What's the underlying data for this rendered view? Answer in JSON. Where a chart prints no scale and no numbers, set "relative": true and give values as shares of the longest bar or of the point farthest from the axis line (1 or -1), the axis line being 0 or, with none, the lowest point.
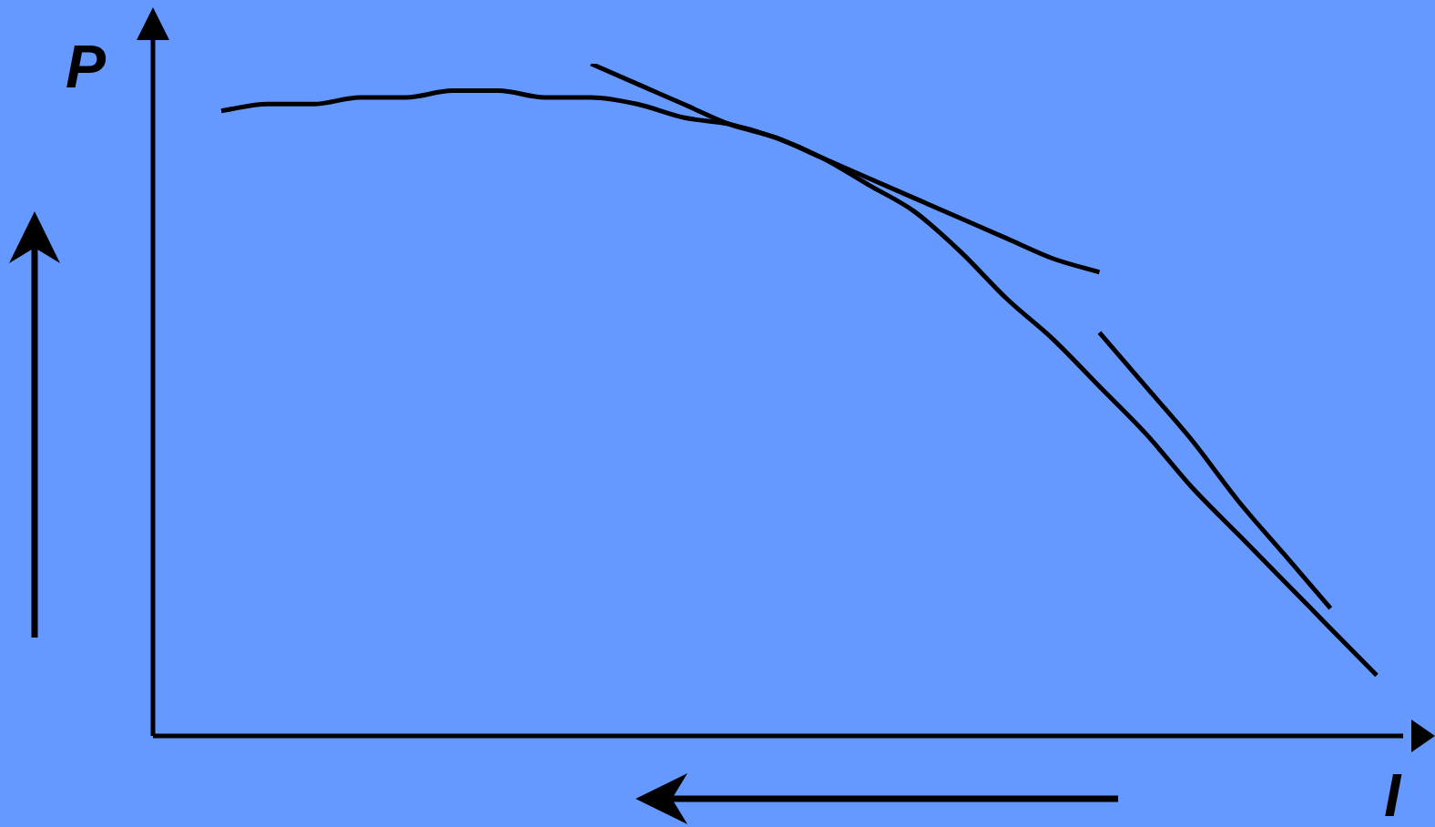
{
  "chart_data": {
    "type": "line",
    "relative": true,
    "xlabel": "I",
    "ylabel": "P",
    "categories": [
      null,
      null,
      null,
      null,
      null,
      null,
      null,
      null,
      null,
      null,
      null,
      null,
      null,
      null,
      null,
      null,
      null,
      null,
      null,
      null,
      null,
      null,
      null,
      null,
      null,
      null
    ],
    "series": [
      {
        "color": "#000000",
        "values": [
          0.93,
          0.94,
          0.94,
          0.95,
          0.95,
          0.96,
          0.96,
          0.95,
          0.95,
          0.94,
          0.92,
          0.91,
          0.89,
          0.86,
          0.82,
          0.78,
          0.72,
          0.65,
          0.59,
          0.52,
          0.45,
          0.37,
          0.3,
          0.23,
          0.16,
          0.09
        ]
      },
      {
        "color": "#000000",
        "values": [
          null,
          null,
          null,
          null,
          null,
          null,
          null,
          null,
          1,
          0.97,
          0.94,
          0.91,
          0.89,
          0.86,
          0.83,
          0.8,
          0.77,
          0.74,
          0.71,
          0.69,
          null,
          null,
          null,
          null,
          null,
          null
        ]
      },
      {
        "color": "#000000",
        "values": [
          null,
          null,
          null,
          null,
          null,
          null,
          null,
          null,
          null,
          null,
          null,
          null,
          null,
          null,
          null,
          null,
          null,
          null,
          null,
          0.6,
          0.52,
          0.44,
          0.35,
          0.27,
          0.19,
          null
        ]
      }
    ],
    "marker": "none",
    "line_style": "solid",
    "legend": false
  }
}
